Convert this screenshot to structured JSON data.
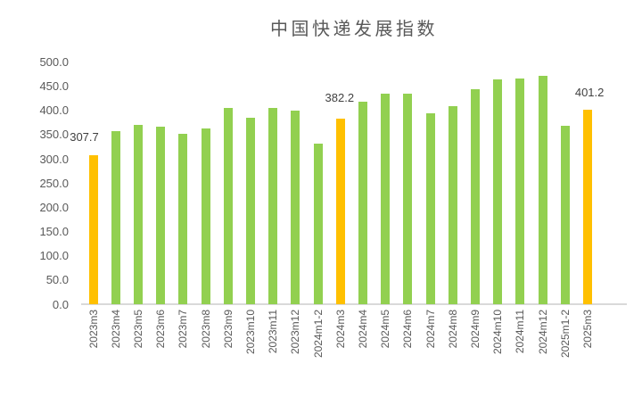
{
  "chart_data": {
    "type": "bar",
    "title": "中国快递发展指数",
    "categories": [
      "2023m3",
      "2023m4",
      "2023m5",
      "2023m6",
      "2023m7",
      "2023m8",
      "2023m9",
      "2023m10",
      "2023m11",
      "2023m12",
      "2024m1-2",
      "2024m3",
      "2024m4",
      "2024m5",
      "2024m6",
      "2024m7",
      "2024m8",
      "2024m9",
      "2024m10",
      "2024m11",
      "2024m12",
      "2025m1-2",
      "2025m3"
    ],
    "values": [
      307.7,
      358,
      371,
      366,
      352,
      363,
      406,
      384,
      406,
      400,
      331,
      382.2,
      418,
      434,
      434,
      395,
      408,
      444,
      464,
      466,
      472,
      368,
      401.2
    ],
    "highlighted_categories": [
      "2023m3",
      "2024m3",
      "2025m3"
    ],
    "data_labels": [
      {
        "category": "2023m3",
        "text": "307.7"
      },
      {
        "category": "2024m3",
        "text": "382.2"
      },
      {
        "category": "2025m3",
        "text": "401.2"
      }
    ],
    "y_tick_labels": [
      "500.0",
      "450.0",
      "400.0",
      "350.0",
      "300.0",
      "250.0",
      "200.0",
      "150.0",
      "100.0",
      "50.0",
      "0.0"
    ],
    "ylim": [
      0,
      500
    ],
    "y_tick_interval": 50,
    "grid": false,
    "legend": false,
    "x_label_rotation_deg": 90,
    "bar_color": "#92D050",
    "highlight_color": "#FFC000",
    "axis_line_color": "#D9D9D9",
    "axis_text_color": "#595959",
    "data_label_color": "#404040",
    "title_color": "#595959",
    "background_color": "#FFFFFF"
  }
}
